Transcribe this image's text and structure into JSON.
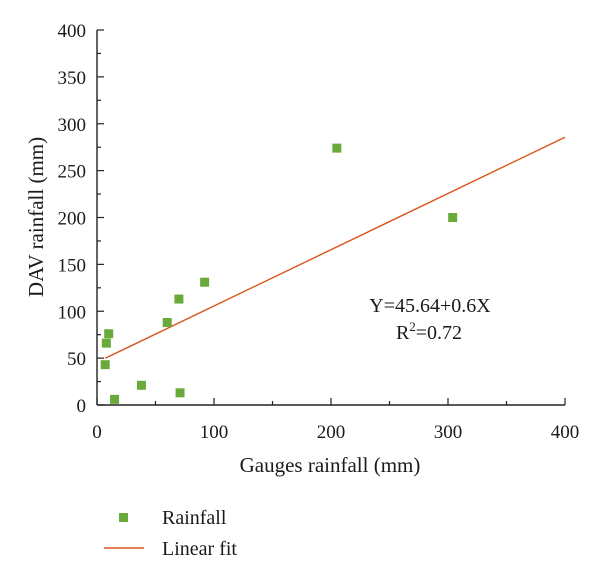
{
  "chart_data": {
    "type": "scatter",
    "xlabel": "Gauges rainfall (mm)",
    "ylabel": "DAV rainfall (mm)",
    "xlim": [
      0,
      400
    ],
    "ylim": [
      0,
      400
    ],
    "xticks": [
      0,
      100,
      200,
      300,
      400
    ],
    "yticks": [
      0,
      50,
      100,
      150,
      200,
      250,
      300,
      350,
      400
    ],
    "grid": false,
    "legend_placement": "bottom-left",
    "series": [
      {
        "name": "Rainfall",
        "kind": "scatter",
        "color": "#6aaa3a",
        "marker": "square",
        "points": [
          {
            "x": 7,
            "y": 43
          },
          {
            "x": 8,
            "y": 66
          },
          {
            "x": 10,
            "y": 76
          },
          {
            "x": 15,
            "y": 6
          },
          {
            "x": 38,
            "y": 21
          },
          {
            "x": 60,
            "y": 88
          },
          {
            "x": 70,
            "y": 113
          },
          {
            "x": 71,
            "y": 13
          },
          {
            "x": 92,
            "y": 131
          },
          {
            "x": 205,
            "y": 274
          },
          {
            "x": 304,
            "y": 200
          }
        ]
      },
      {
        "name": "Linear fit",
        "kind": "line",
        "color": "#d9541a",
        "intercept": 45.64,
        "slope": 0.6,
        "x_range": [
          7,
          400
        ]
      }
    ],
    "annotations": {
      "equation": "Y=45.64+0.6X",
      "r2_prefix": "R",
      "r2_exponent": "2",
      "r2_value": "=0.72"
    }
  }
}
